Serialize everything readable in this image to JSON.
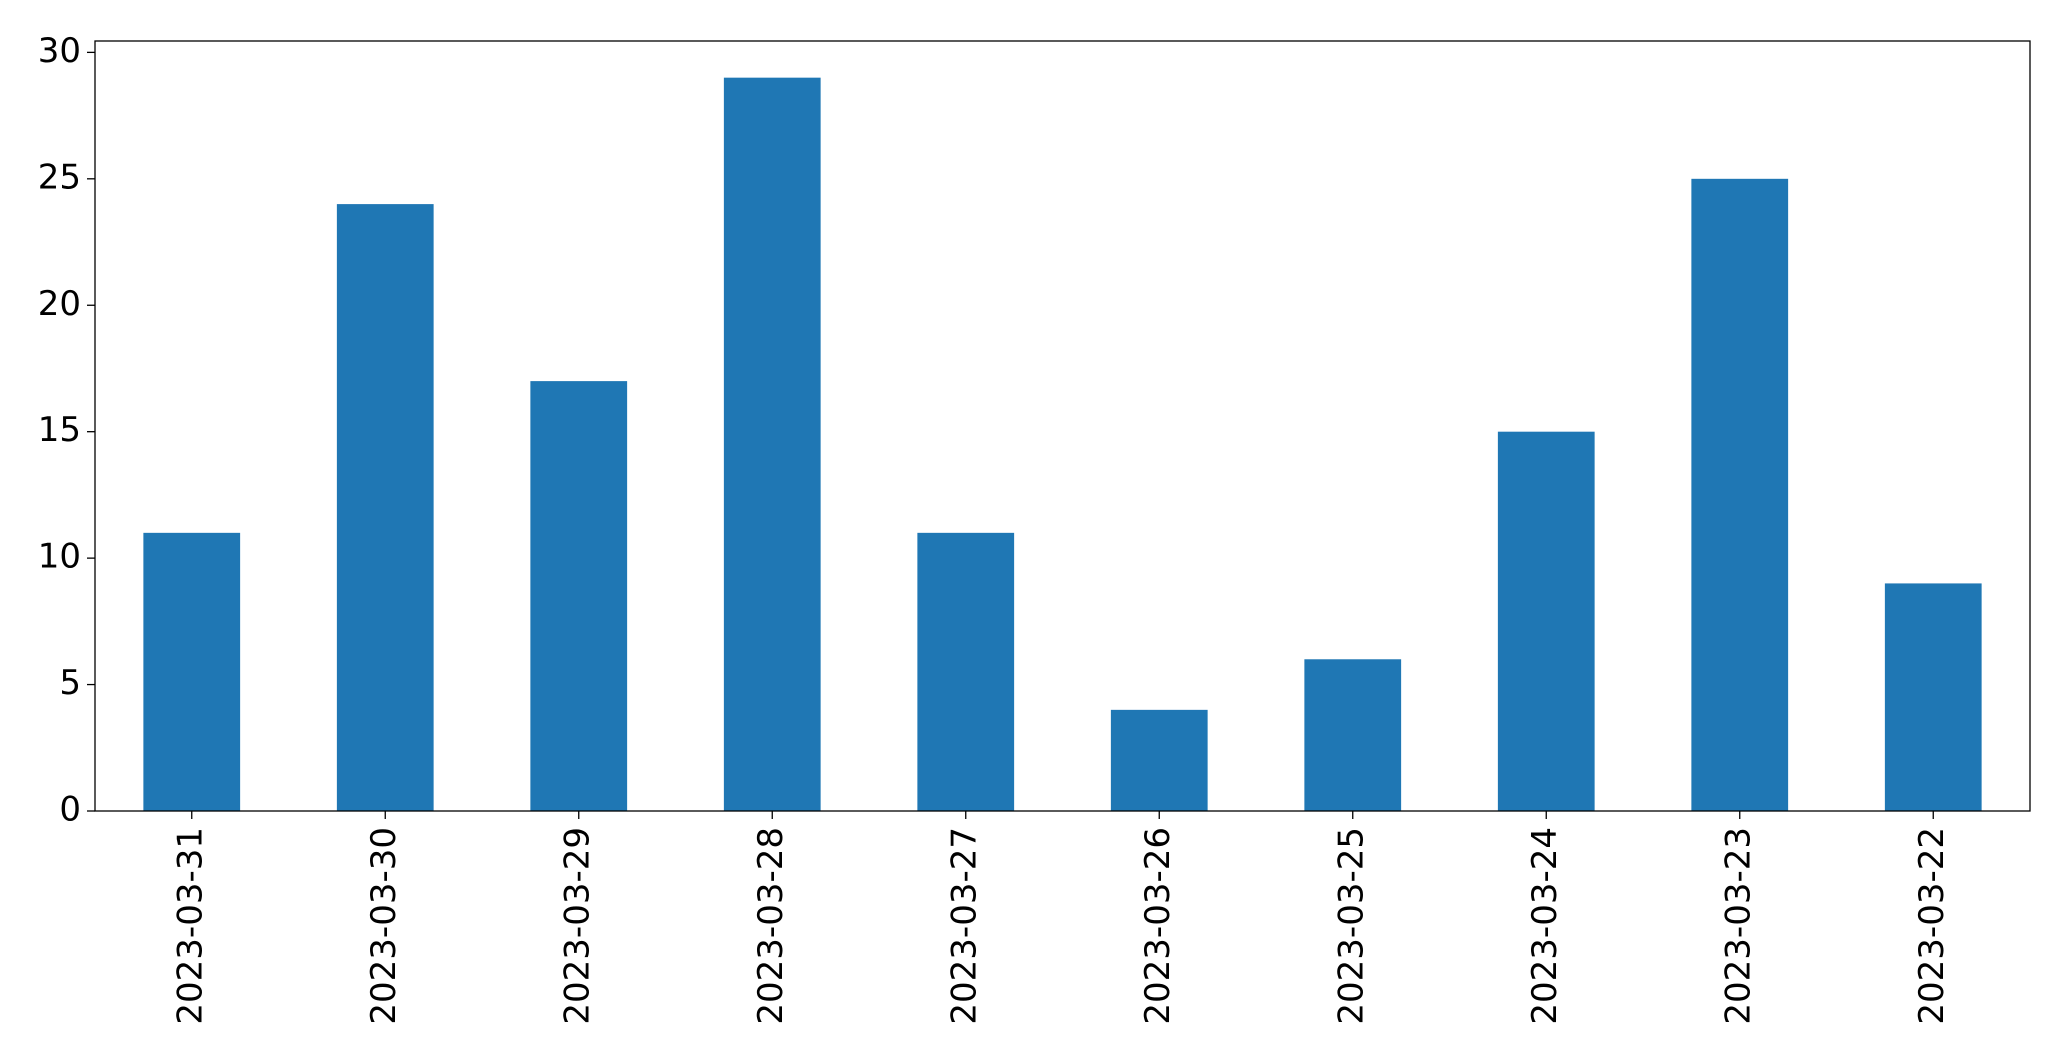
{
  "chart_data": {
    "type": "bar",
    "categories": [
      "2023-03-31",
      "2023-03-30",
      "2023-03-29",
      "2023-03-28",
      "2023-03-27",
      "2023-03-26",
      "2023-03-25",
      "2023-03-24",
      "2023-03-23",
      "2023-03-22"
    ],
    "values": [
      11,
      24,
      17,
      29,
      11,
      4,
      6,
      15,
      25,
      9
    ],
    "color": "#1f77b4",
    "ylim": [
      0,
      30.45
    ],
    "yticks": [
      0,
      5,
      10,
      15,
      20,
      25,
      30
    ],
    "grid": false
  }
}
